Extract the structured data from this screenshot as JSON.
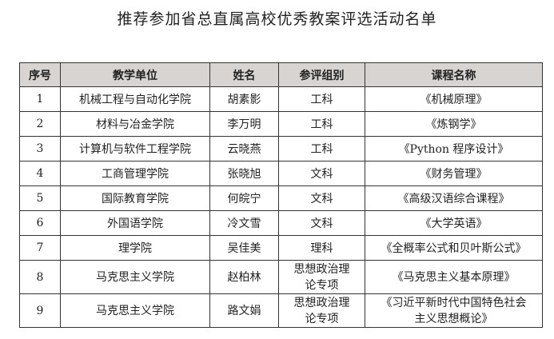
{
  "title": "推荐参加省总直属高校优秀教案评选活动名单",
  "table": {
    "headers": [
      "序号",
      "教学单位",
      "姓名",
      "参评组别",
      "课程名称"
    ],
    "rows": [
      {
        "no": "1",
        "unit": "机械工程与自动化学院",
        "name": "胡素影",
        "group": "工科",
        "course": "《机械原理》"
      },
      {
        "no": "2",
        "unit": "材料与冶金学院",
        "name": "李万明",
        "group": "工科",
        "course": "《炼钢学》"
      },
      {
        "no": "3",
        "unit": "计算机与软件工程学院",
        "name": "云晓燕",
        "group": "工科",
        "course": "《Python 程序设计》"
      },
      {
        "no": "4",
        "unit": "工商管理学院",
        "name": "张晓旭",
        "group": "文科",
        "course": "《财务管理》"
      },
      {
        "no": "5",
        "unit": "国际教育学院",
        "name": "何皖宁",
        "group": "文科",
        "course": "《高级汉语综合课程》"
      },
      {
        "no": "6",
        "unit": "外国语学院",
        "name": "冷文雪",
        "group": "文科",
        "course": "《大学英语》"
      },
      {
        "no": "7",
        "unit": "理学院",
        "name": "吴佳美",
        "group": "理科",
        "course": "《全概率公式和贝叶斯公式》"
      },
      {
        "no": "8",
        "unit": "马克思主义学院",
        "name": "赵柏林",
        "group": "思想政治理论专项",
        "course": "《马克思主义基本原理》"
      },
      {
        "no": "9",
        "unit": "马克思主义学院",
        "name": "路文娟",
        "group": "思想政治理论专项",
        "course": "《习近平新时代中国特色社会主义思想概论》"
      }
    ]
  }
}
